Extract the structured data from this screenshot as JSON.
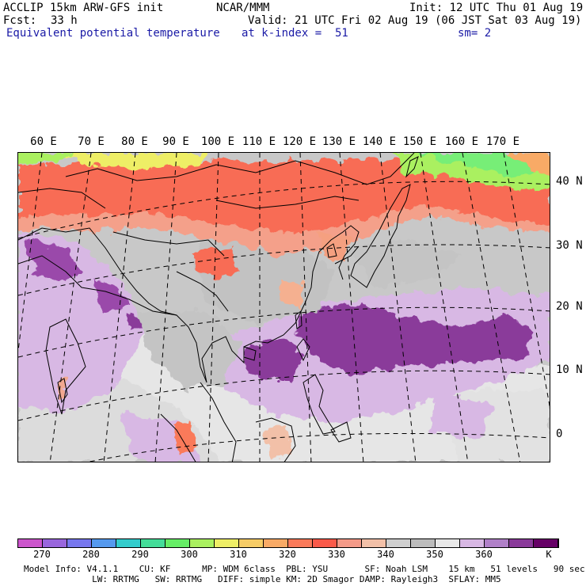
{
  "header": {
    "model_title": "ACCLIP 15km ARW-GFS init",
    "center": "NCAR/MMM",
    "init_time": "Init: 12 UTC Thu 01 Aug 19",
    "fcst_label": "Fcst:",
    "fcst_value": "33 h",
    "valid_time": "Valid: 21 UTC Fri 02 Aug 19 (06 JST Sat 03 Aug 19)",
    "field_name": "Equivalent potential temperature",
    "level": "at k-index =  51",
    "smoothing": "sm= 2"
  },
  "map": {
    "lon_labels": [
      "60 E",
      "70 E",
      "80 E",
      "90 E",
      "100 E",
      "110 E",
      "120 E",
      "130 E",
      "140 E",
      "150 E",
      "160 E",
      "170 E"
    ],
    "lat_labels": [
      "40 N",
      "30 N",
      "20 N",
      "10 N",
      "0"
    ]
  },
  "colorbar": {
    "units": "K",
    "tick_labels": [
      "270",
      "280",
      "290",
      "300",
      "310",
      "320",
      "330",
      "340",
      "350",
      "360"
    ],
    "colors": [
      "#cc55cc",
      "#9966dd",
      "#7777ee",
      "#5599ee",
      "#33cccc",
      "#44dd99",
      "#66ee66",
      "#aaf060",
      "#eeee66",
      "#f6cc66",
      "#f8aa66",
      "#fa7a5a",
      "#fa5a4a",
      "#f49a88",
      "#f2c0a8",
      "#cfcfcf",
      "#bcbcbc",
      "#e8e8e8",
      "#d8b8e4",
      "#b080c8",
      "#8a3a9a",
      "#660066"
    ]
  },
  "footer": {
    "line1": "Model Info: V4.1.1    CU: KF      MP: WDM 6class  PBL: YSU       SF: Noah LSM    15 km   51 levels   90 sec",
    "line2": "             LW: RRTMG   SW: RRTMG   DIFF: simple KM: 2D Smagor DAMP: Rayleigh3  SFLAY: MM5"
  }
}
